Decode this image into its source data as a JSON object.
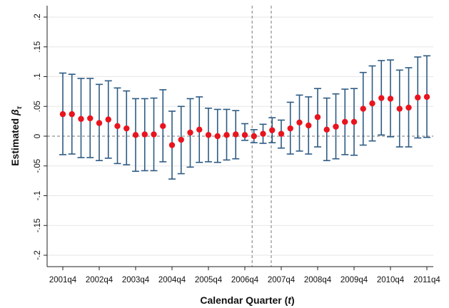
{
  "chart_data": {
    "type": "scatter",
    "xlabel": "Calendar Quarter (t)",
    "ylabel": "Estimated β_τ",
    "xlim": [
      0,
      40
    ],
    "ylim": [
      -0.22,
      0.22
    ],
    "yticks": [
      -0.2,
      -0.15,
      -0.1,
      -0.05,
      0,
      0.05,
      0.1,
      0.15,
      0.2
    ],
    "ytick_labels": [
      "-.2",
      "-.15",
      "-.1",
      "-.05",
      "0",
      ".05",
      ".1",
      ".15",
      ".2"
    ],
    "xticks": [
      0,
      4,
      8,
      12,
      16,
      20,
      24,
      28,
      32,
      36,
      40
    ],
    "xtick_labels": [
      "2001q4",
      "2002q4",
      "2003q4",
      "2004q4",
      "2005q4",
      "2006q4",
      "2007q4",
      "2008q4",
      "2009q4",
      "2010q4",
      "2011q4"
    ],
    "vertical_reference_lines": [
      20.8,
      22.9
    ],
    "horizontal_reference_line": 0,
    "grid": "horizontal",
    "colors": {
      "point": "#e8141e",
      "error_bar": "#2e5b84",
      "grid": "#e6e6e6",
      "reference": "#777777"
    },
    "series": [
      {
        "x": [
          0,
          1,
          2,
          3,
          4,
          5,
          6,
          7,
          8,
          9,
          10,
          11,
          12,
          13,
          14,
          15,
          16,
          17,
          18,
          19,
          20,
          21,
          22,
          23,
          24,
          25,
          26,
          27,
          28,
          29,
          30,
          31,
          32,
          33,
          34,
          35,
          36,
          37,
          38,
          39,
          40
        ],
        "y": [
          0.037,
          0.037,
          0.029,
          0.03,
          0.022,
          0.028,
          0.017,
          0.013,
          0.002,
          0.003,
          0.003,
          0.017,
          -0.015,
          -0.006,
          0.006,
          0.011,
          0.002,
          0.0,
          0.002,
          0.003,
          0.002,
          0.0,
          0.004,
          0.01,
          0.004,
          0.013,
          0.023,
          0.018,
          0.032,
          0.011,
          0.016,
          0.024,
          0.024,
          0.046,
          0.055,
          0.064,
          0.063,
          0.046,
          0.048,
          0.065,
          0.066
        ],
        "lower": [
          -0.031,
          -0.03,
          -0.036,
          -0.036,
          -0.041,
          -0.037,
          -0.046,
          -0.048,
          -0.059,
          -0.058,
          -0.058,
          -0.043,
          -0.072,
          -0.063,
          -0.052,
          -0.044,
          -0.043,
          -0.044,
          -0.04,
          -0.038,
          -0.007,
          -0.011,
          -0.012,
          -0.011,
          -0.02,
          -0.03,
          -0.025,
          -0.03,
          -0.018,
          -0.041,
          -0.038,
          -0.031,
          -0.032,
          -0.015,
          -0.008,
          0.002,
          -0.001,
          -0.018,
          -0.018,
          -0.003,
          -0.002
        ],
        "upper": [
          0.106,
          0.104,
          0.097,
          0.097,
          0.087,
          0.093,
          0.081,
          0.076,
          0.063,
          0.063,
          0.064,
          0.078,
          0.042,
          0.05,
          0.063,
          0.066,
          0.047,
          0.045,
          0.045,
          0.043,
          0.021,
          0.011,
          0.02,
          0.031,
          0.027,
          0.057,
          0.069,
          0.066,
          0.08,
          0.064,
          0.071,
          0.079,
          0.08,
          0.107,
          0.118,
          0.127,
          0.128,
          0.111,
          0.115,
          0.133,
          0.135
        ]
      }
    ]
  }
}
